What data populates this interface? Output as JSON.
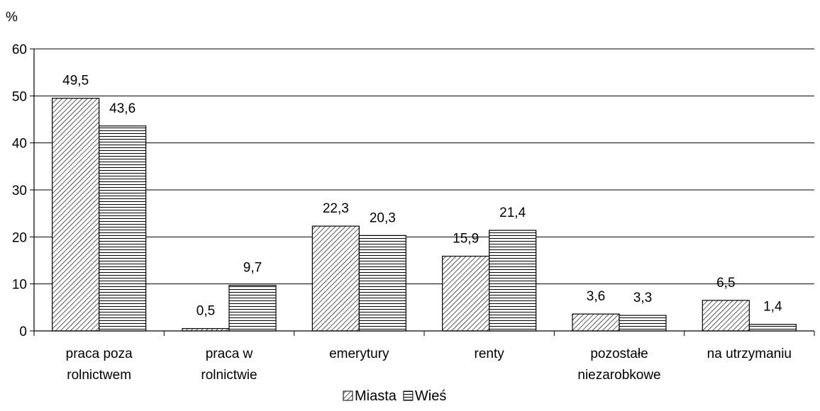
{
  "chart_data": {
    "type": "bar",
    "ylabel": "%",
    "ylim": [
      0,
      60
    ],
    "yticks": [
      0,
      10,
      20,
      30,
      40,
      50,
      60
    ],
    "grid": true,
    "legend_position": "bottom-center",
    "categories": [
      [
        "praca poza",
        "rolnictwem"
      ],
      [
        "praca w",
        "rolnictwie"
      ],
      [
        "emerytury"
      ],
      [
        "renty"
      ],
      [
        "pozostałe",
        "niezarobkowe"
      ],
      [
        "na utrzymaniu"
      ]
    ],
    "series": [
      {
        "name": "Miasta",
        "pattern": "diagonal",
        "values": [
          49.5,
          0.5,
          22.3,
          15.9,
          3.6,
          6.5
        ],
        "labels": [
          "49,5",
          "0,5",
          "22,3",
          "15,9",
          "3,6",
          "6,5"
        ]
      },
      {
        "name": "Wieś",
        "pattern": "horizontal",
        "values": [
          43.6,
          9.7,
          20.3,
          21.4,
          3.3,
          1.4
        ],
        "labels": [
          "43,6",
          "9,7",
          "20,3",
          "21,4",
          "3,3",
          "1,4"
        ]
      }
    ],
    "colors": {
      "bar_fill": "#ffffff",
      "stroke": "#000000",
      "grid": "#000000"
    }
  }
}
